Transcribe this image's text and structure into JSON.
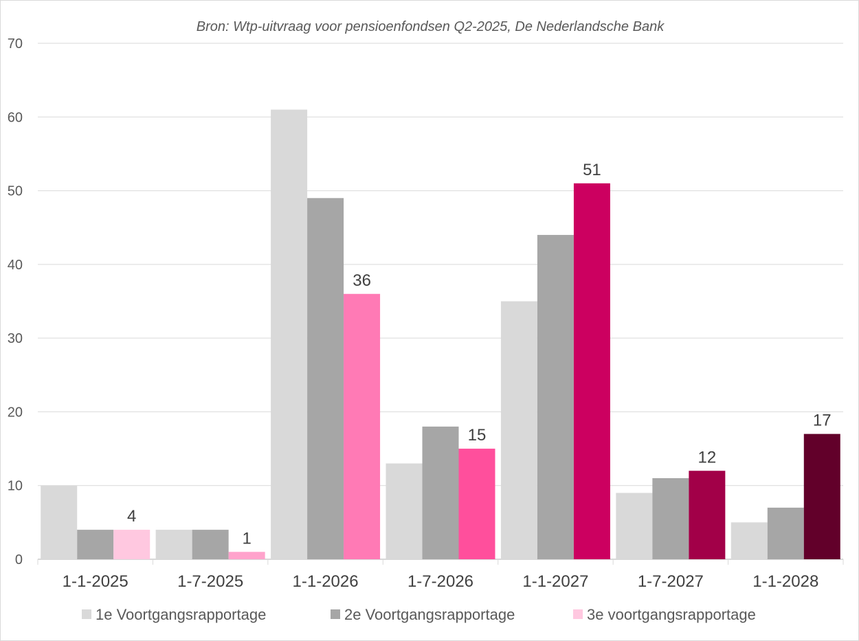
{
  "chart_data": {
    "type": "bar",
    "title": "",
    "subtitle": "Bron: Wtp-uitvraag voor pensioenfondsen Q2-2025, De Nederlandsche Bank",
    "xlabel": "",
    "ylabel": "",
    "ylim": [
      0,
      70
    ],
    "yticks": [
      0,
      10,
      20,
      30,
      40,
      50,
      60,
      70
    ],
    "grid": true,
    "legend_position": "bottom",
    "categories": [
      "1-1-2025",
      "1-7-2025",
      "1-1-2026",
      "1-7-2026",
      "1-1-2027",
      "1-7-2027",
      "1-1-2028"
    ],
    "series": [
      {
        "name": "1e Voortgangsrapportage",
        "values": [
          10,
          4,
          61,
          13,
          35,
          9,
          5
        ],
        "color": "#d9d9d9"
      },
      {
        "name": "2e Voortgangsrapportage",
        "values": [
          4,
          4,
          49,
          18,
          44,
          11,
          7
        ],
        "color": "#a6a6a6"
      },
      {
        "name": "3e voortgangsrapportage",
        "values": [
          4,
          1,
          36,
          15,
          51,
          12,
          17
        ],
        "color": "#ffc8e0",
        "bar_colors": [
          "#ffc8e0",
          "#ffa3cc",
          "#ff7ab5",
          "#ff4f9c",
          "#cc0060",
          "#a20048",
          "#62002a"
        ],
        "data_labels": true
      }
    ]
  }
}
